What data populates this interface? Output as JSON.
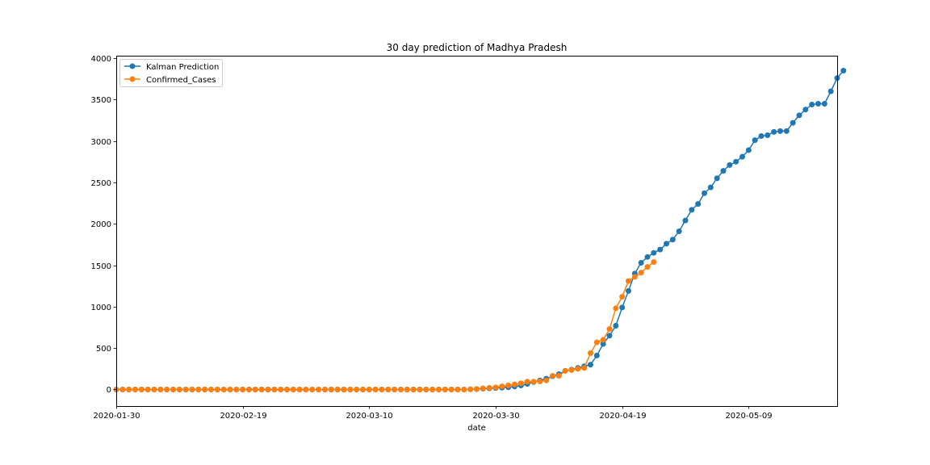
{
  "chart_data": {
    "type": "line",
    "title": "30 day prediction of Madhya Pradesh",
    "xlabel": "date",
    "ylabel": "",
    "x_start": "2020-01-30",
    "x_end": "2020-05-23",
    "xlim": [
      "2020-01-30",
      "2020-05-23"
    ],
    "ylim": [
      -200,
      4030
    ],
    "x_ticks": [
      "2020-01-30",
      "2020-02-19",
      "2020-03-10",
      "2020-03-30",
      "2020-04-19",
      "2020-05-09"
    ],
    "y_ticks": [
      0,
      500,
      1000,
      1500,
      2000,
      2500,
      3000,
      3500,
      4000
    ],
    "grid": false,
    "legend_position": "top-left",
    "series": [
      {
        "name": "Kalman Prediction",
        "color": "#1f77b4",
        "values": [
          0,
          0,
          0,
          0,
          0,
          0,
          0,
          0,
          0,
          0,
          0,
          0,
          0,
          0,
          0,
          0,
          0,
          0,
          0,
          0,
          0,
          0,
          0,
          0,
          0,
          0,
          0,
          0,
          0,
          0,
          0,
          0,
          0,
          0,
          0,
          0,
          0,
          0,
          0,
          0,
          0,
          0,
          0,
          0,
          0,
          0,
          0,
          0,
          0,
          0,
          0,
          0,
          0,
          0,
          0,
          0,
          2,
          5,
          10,
          14,
          18,
          23,
          28,
          36,
          48,
          68,
          90,
          110,
          130,
          160,
          185,
          225,
          240,
          260,
          280,
          300,
          410,
          550,
          650,
          770,
          990,
          1190,
          1400,
          1530,
          1600,
          1650,
          1690,
          1760,
          1810,
          1910,
          2040,
          2170,
          2240,
          2370,
          2440,
          2550,
          2640,
          2710,
          2750,
          2810,
          2890,
          3010,
          3060,
          3070,
          3110,
          3120,
          3120,
          3220,
          3310,
          3380,
          3440,
          3450,
          3450,
          3600,
          3760,
          3850
        ]
      },
      {
        "name": "Confirmed_Cases",
        "color": "#ff7f0e",
        "values": [
          0,
          0,
          0,
          0,
          0,
          0,
          0,
          0,
          0,
          0,
          0,
          0,
          0,
          0,
          0,
          0,
          0,
          0,
          0,
          0,
          0,
          0,
          0,
          0,
          0,
          0,
          0,
          0,
          0,
          0,
          0,
          0,
          0,
          0,
          0,
          0,
          0,
          0,
          0,
          0,
          0,
          0,
          0,
          0,
          0,
          0,
          0,
          0,
          0,
          0,
          0,
          0,
          0,
          0,
          0,
          0,
          2,
          7,
          14,
          20,
          25,
          38,
          50,
          62,
          75,
          95,
          95,
          98,
          110,
          165,
          165,
          225,
          235,
          250,
          260,
          440,
          570,
          600,
          730,
          980,
          1120,
          1310,
          1360,
          1410,
          1480,
          1540
        ]
      }
    ]
  }
}
